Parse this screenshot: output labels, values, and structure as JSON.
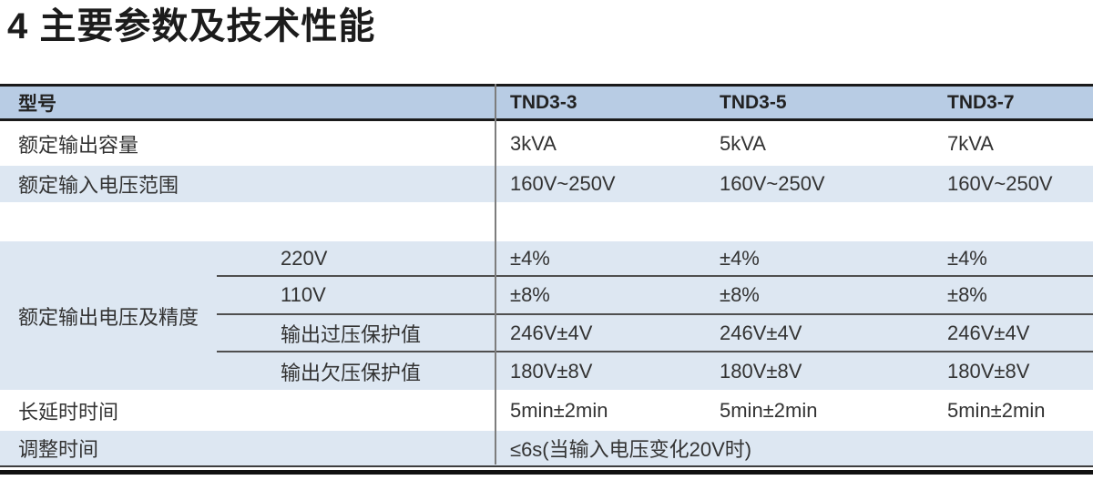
{
  "page": {
    "title": "4 主要参数及技术性能"
  },
  "table": {
    "header": {
      "model_label": "型号",
      "columns": [
        "TND3-3",
        "TND3-5",
        "TND3-7"
      ]
    },
    "rows": {
      "capacity": {
        "label": "额定输出容量",
        "values": [
          "3kVA",
          "5kVA",
          "7kVA"
        ]
      },
      "input_voltage": {
        "label": "额定输入电压范围",
        "values": [
          "160V~250V",
          "160V~250V",
          "160V~250V"
        ]
      },
      "output_voltage_group": {
        "label": "额定输出电压及精度",
        "subrows": [
          {
            "label": "220V",
            "values": [
              "±4%",
              "±4%",
              "±4%"
            ]
          },
          {
            "label": "110V",
            "values": [
              "±8%",
              "±8%",
              "±8%"
            ]
          },
          {
            "label": "输出过压保护值",
            "values": [
              "246V±4V",
              "246V±4V",
              "246V±4V"
            ]
          },
          {
            "label": "输出欠压保护值",
            "values": [
              "180V±8V",
              "180V±8V",
              "180V±8V"
            ]
          }
        ]
      },
      "long_delay": {
        "label": "长延时时间",
        "values": [
          "5min±2min",
          "5min±2min",
          "5min±2min"
        ]
      },
      "adjust_time": {
        "label": "调整时间",
        "value_span": "≤6s(当输入电压变化20V时)"
      }
    }
  },
  "colors": {
    "header_bg": "#b8cce4",
    "band_bg": "#dde7f2",
    "border_dark": "#1a1a1a",
    "divider_gray": "#7d7d7d",
    "subline_gray": "#4f4f4f",
    "text_color": "#333333",
    "title_color": "#1c1c1c"
  }
}
